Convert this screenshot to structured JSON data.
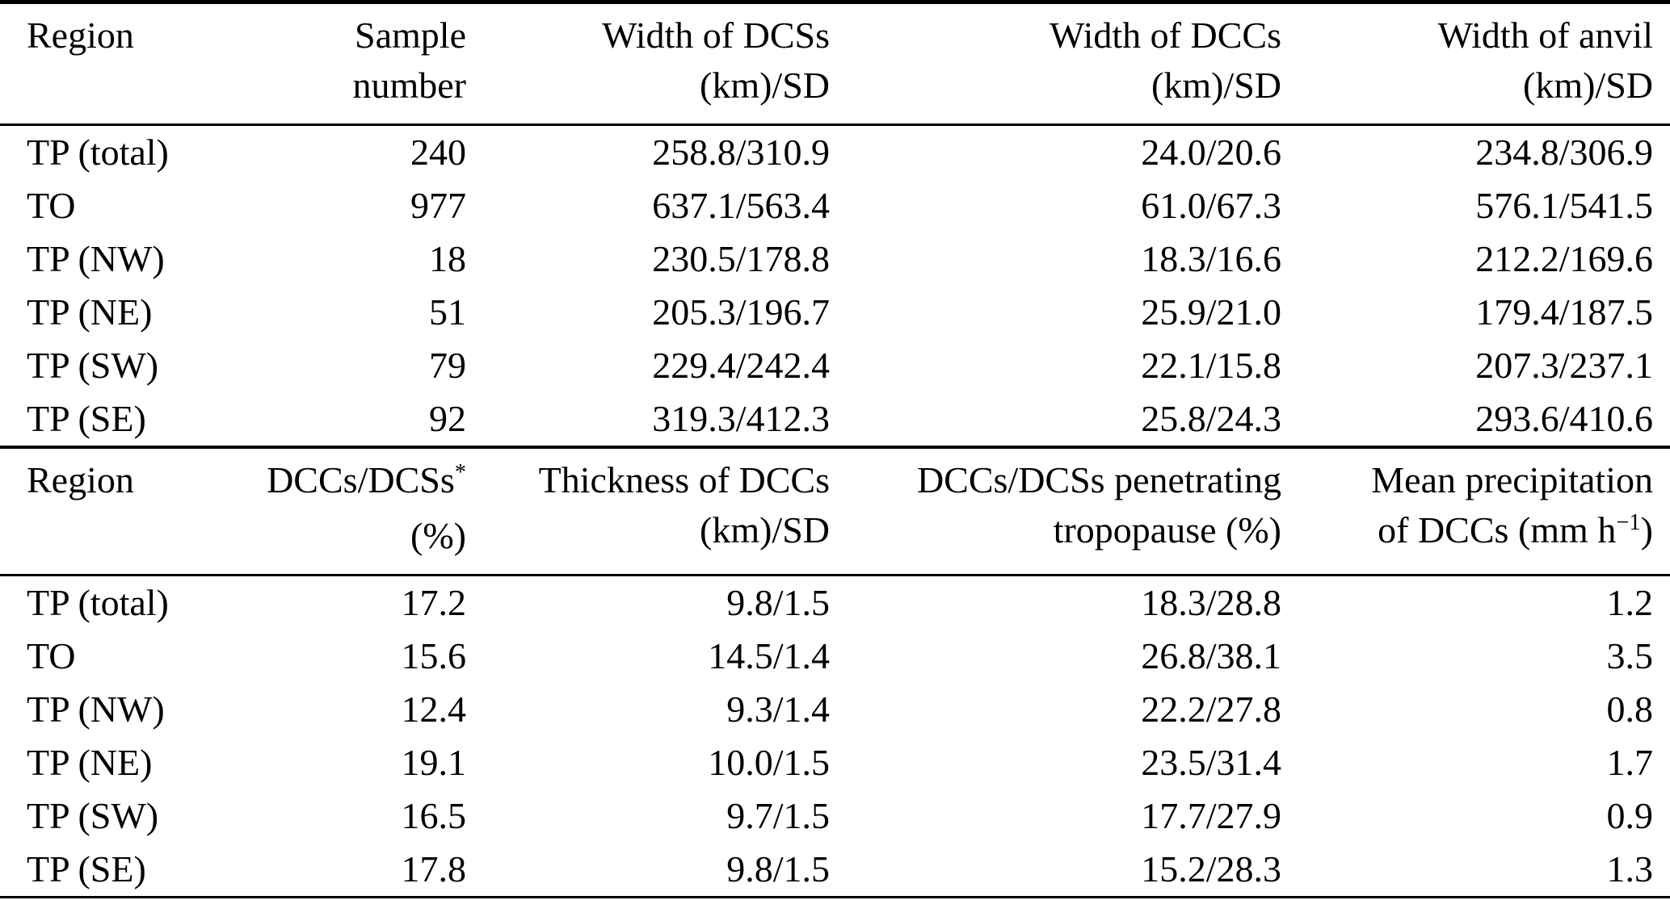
{
  "table1": {
    "headers": {
      "region": "Region",
      "sample_line1": "Sample",
      "sample_line2": "number",
      "dcs_line1": "Width of DCSs",
      "dcs_line2": "(km)/SD",
      "dcc_line1": "Width of DCCs",
      "dcc_line2": "(km)/SD",
      "anvil_line1": "Width of anvil",
      "anvil_line2": "(km)/SD"
    },
    "rows": [
      {
        "region": "TP (total)",
        "sample": "240",
        "dcs": "258.8/310.9",
        "dcc": "24.0/20.6",
        "anvil": "234.8/306.9"
      },
      {
        "region": "TO",
        "sample": "977",
        "dcs": "637.1/563.4",
        "dcc": "61.0/67.3",
        "anvil": "576.1/541.5"
      },
      {
        "region": "TP (NW)",
        "sample": "18",
        "dcs": "230.5/178.8",
        "dcc": "18.3/16.6",
        "anvil": "212.2/169.6"
      },
      {
        "region": "TP (NE)",
        "sample": "51",
        "dcs": "205.3/196.7",
        "dcc": "25.9/21.0",
        "anvil": "179.4/187.5"
      },
      {
        "region": "TP (SW)",
        "sample": "79",
        "dcs": "229.4/242.4",
        "dcc": "22.1/15.8",
        "anvil": "207.3/237.1"
      },
      {
        "region": "TP (SE)",
        "sample": "92",
        "dcs": "319.3/412.3",
        "dcc": "25.8/24.3",
        "anvil": "293.6/410.6"
      }
    ]
  },
  "table2": {
    "headers": {
      "region": "Region",
      "ratio_line1_base": "DCCs/DCSs",
      "ratio_line1_sup": "*",
      "ratio_line2": "(%)",
      "thickness_line1": "Thickness of DCCs",
      "thickness_line2": "(km)/SD",
      "penetrating_line1": "DCCs/DCSs penetrating",
      "penetrating_line2": "tropopause (%)",
      "precip_line1": "Mean precipitation",
      "precip_line2_pre": "of DCCs (mm h",
      "precip_line2_sup": "−1",
      "precip_line2_post": ")"
    },
    "rows": [
      {
        "region": "TP (total)",
        "ratio": "17.2",
        "thickness": "9.8/1.5",
        "penetrating": "18.3/28.8",
        "precip": "1.2"
      },
      {
        "region": "TO",
        "ratio": "15.6",
        "thickness": "14.5/1.4",
        "penetrating": "26.8/38.1",
        "precip": "3.5"
      },
      {
        "region": "TP (NW)",
        "ratio": "12.4",
        "thickness": "9.3/1.4",
        "penetrating": "22.2/27.8",
        "precip": "0.8"
      },
      {
        "region": "TP (NE)",
        "ratio": "19.1",
        "thickness": "10.0/1.5",
        "penetrating": "23.5/31.4",
        "precip": "1.7"
      },
      {
        "region": "TP (SW)",
        "ratio": "16.5",
        "thickness": "9.7/1.5",
        "penetrating": "17.7/27.9",
        "precip": "0.9"
      },
      {
        "region": "TP (SE)",
        "ratio": "17.8",
        "thickness": "9.8/1.5",
        "penetrating": "15.2/28.3",
        "precip": "1.3"
      }
    ]
  }
}
